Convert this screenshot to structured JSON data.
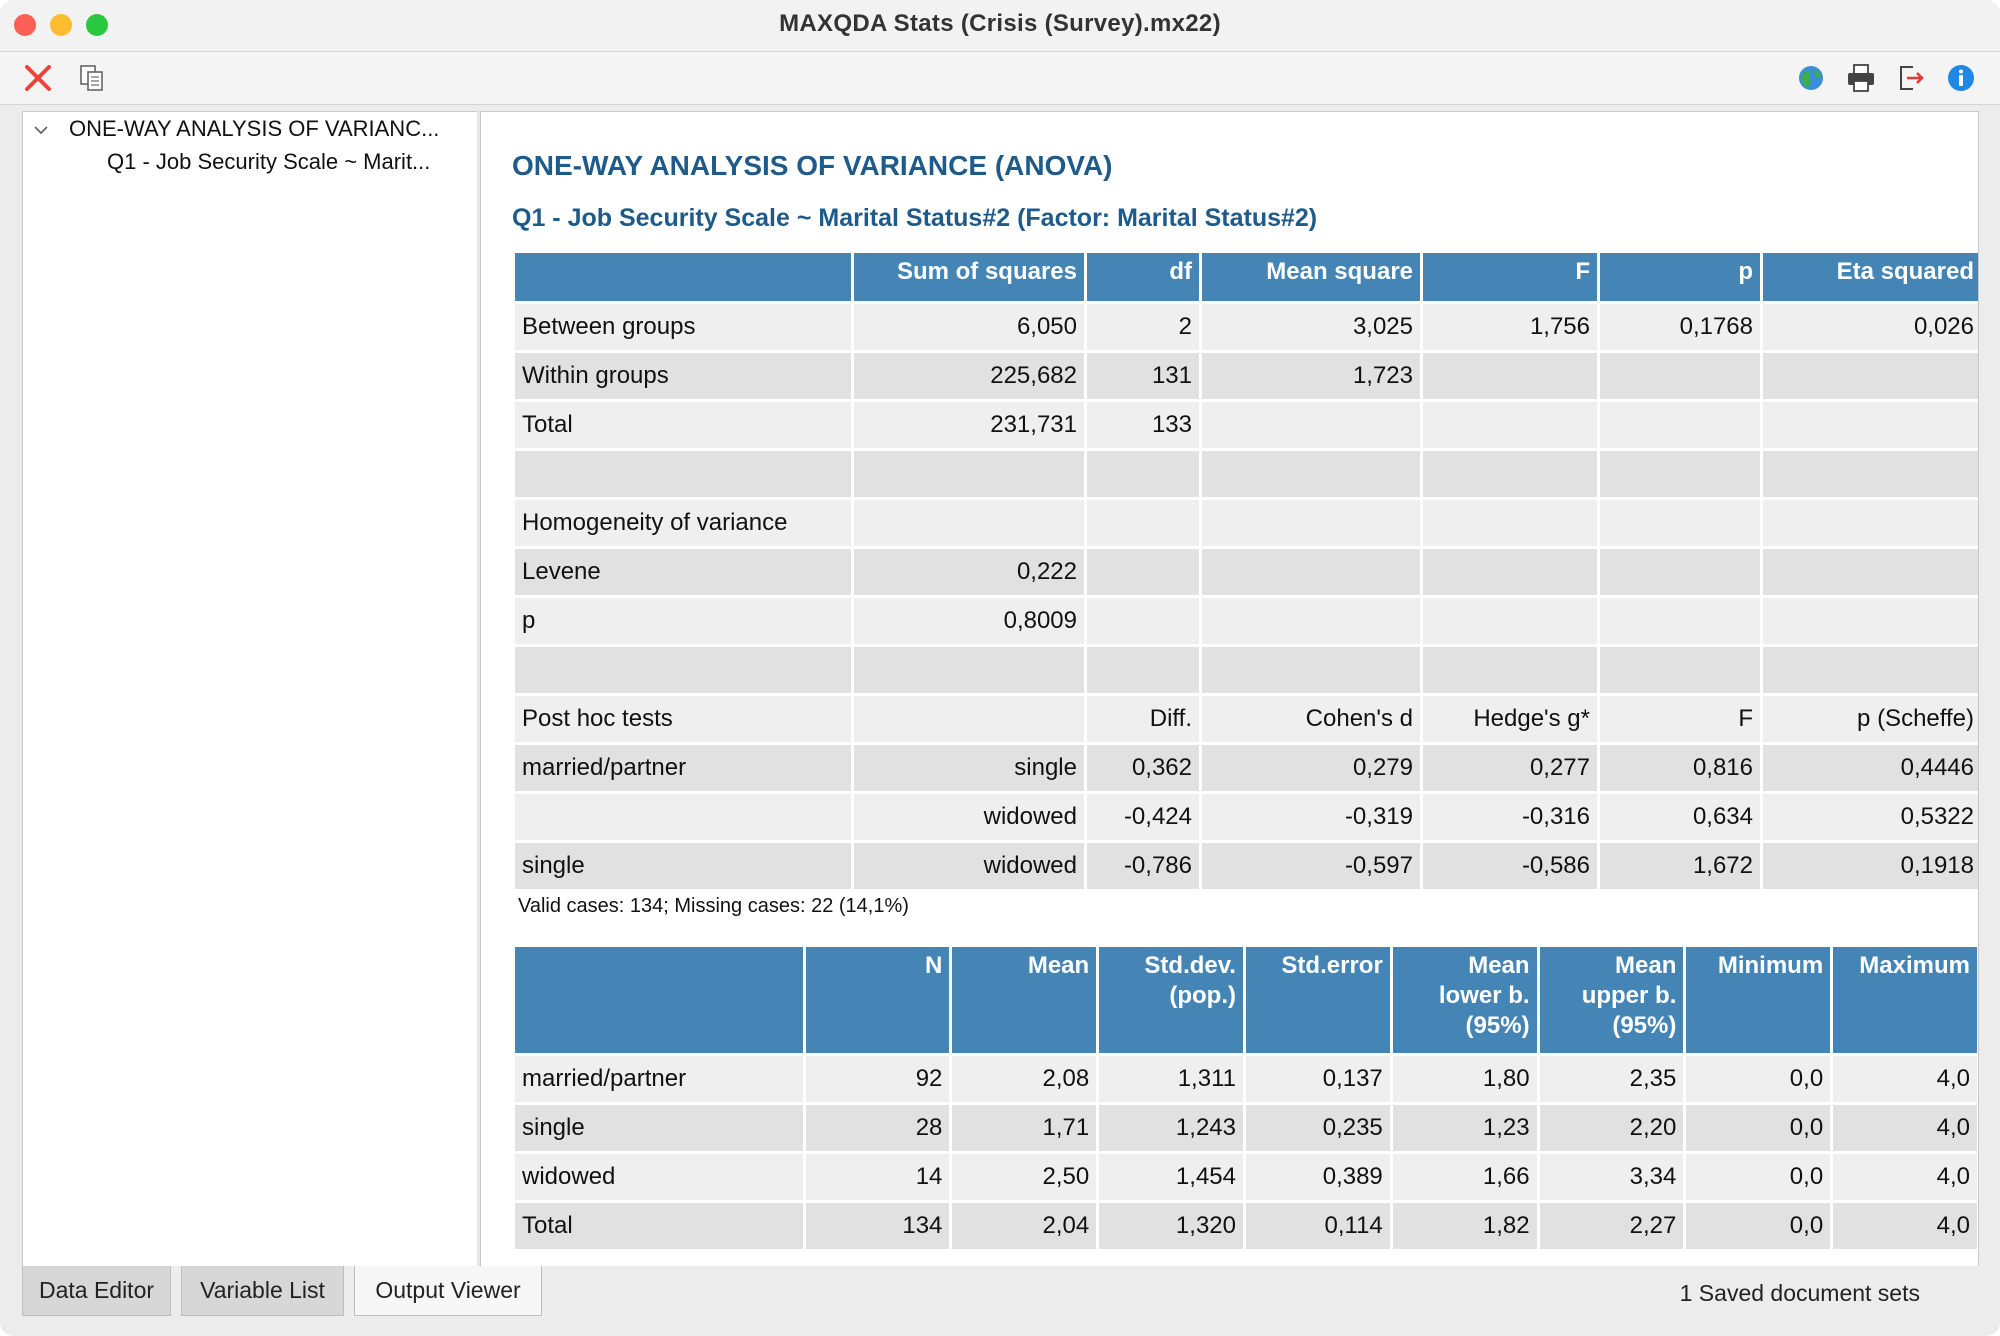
{
  "window": {
    "title": "MAXQDA Stats (Crisis (Survey).mx22)"
  },
  "toolbar": {
    "left_icons": [
      "close-icon",
      "copy-icon"
    ],
    "right_icons": [
      "globe-icon",
      "print-icon",
      "export-icon",
      "info-icon"
    ],
    "colors": {
      "close": "#e8453c",
      "info": "#1e88e5"
    }
  },
  "tree": {
    "root_label": "ONE-WAY ANALYSIS OF VARIANC...",
    "child_label": "Q1 - Job Security Scale ~ Marit..."
  },
  "report": {
    "title": "ONE-WAY ANALYSIS OF VARIANCE (ANOVA)",
    "subtitle": "Q1 - Job Security Scale ~ Marital Status#2 (Factor: Marital Status#2)",
    "title_color": "#1f5b8a",
    "header_color": "#4485b6",
    "anova": {
      "headers": [
        "",
        "Sum of squares",
        "df",
        "Mean square",
        "F",
        "p",
        "Eta squared"
      ],
      "rows": [
        [
          "Between groups",
          "6,050",
          "2",
          "3,025",
          "1,756",
          "0,1768",
          "0,026"
        ],
        [
          "Within groups",
          "225,682",
          "131",
          "1,723",
          "",
          "",
          ""
        ],
        [
          "Total",
          "231,731",
          "133",
          "",
          "",
          "",
          ""
        ],
        [
          "",
          "",
          "",
          "",
          "",
          "",
          ""
        ],
        [
          "Homogeneity of variance",
          "",
          "",
          "",
          "",
          "",
          ""
        ],
        [
          "Levene",
          "0,222",
          "",
          "",
          "",
          "",
          ""
        ],
        [
          "p",
          "0,8009",
          "",
          "",
          "",
          "",
          ""
        ],
        [
          "",
          "",
          "",
          "",
          "",
          "",
          ""
        ],
        [
          "Post hoc tests",
          "",
          "Diff.",
          "Cohen's d",
          "Hedge's g*",
          "F",
          "p (Scheffe)"
        ],
        [
          "married/partner",
          "single",
          "0,362",
          "0,279",
          "0,277",
          "0,816",
          "0,4446"
        ],
        [
          "",
          "widowed",
          "-0,424",
          "-0,319",
          "-0,316",
          "0,634",
          "0,5322"
        ],
        [
          "single",
          "widowed",
          "-0,786",
          "-0,597",
          "-0,586",
          "1,672",
          "0,1918"
        ]
      ]
    },
    "note": "Valid cases: 134; Missing cases: 22 (14,1%)",
    "descriptives": {
      "headers": [
        [
          "",
          ""
        ],
        [
          "N",
          ""
        ],
        [
          "Mean",
          ""
        ],
        [
          "Std.dev.",
          "(pop.)"
        ],
        [
          "Std.error",
          ""
        ],
        [
          "Mean",
          "lower b.",
          "(95%)"
        ],
        [
          "Mean",
          "upper b.",
          "(95%)"
        ],
        [
          "Minimum",
          ""
        ],
        [
          "Maximum",
          ""
        ]
      ],
      "rows": [
        [
          "married/partner",
          "92",
          "2,08",
          "1,311",
          "0,137",
          "1,80",
          "2,35",
          "0,0",
          "4,0"
        ],
        [
          "single",
          "28",
          "1,71",
          "1,243",
          "0,235",
          "1,23",
          "2,20",
          "0,0",
          "4,0"
        ],
        [
          "widowed",
          "14",
          "2,50",
          "1,454",
          "0,389",
          "1,66",
          "3,34",
          "0,0",
          "4,0"
        ],
        [
          "Total",
          "134",
          "2,04",
          "1,320",
          "0,114",
          "1,82",
          "2,27",
          "0,0",
          "4,0"
        ]
      ]
    }
  },
  "bottom_tabs": [
    {
      "label": "Data Editor",
      "active": false
    },
    {
      "label": "Variable List",
      "active": false
    },
    {
      "label": "Output Viewer",
      "active": true
    }
  ],
  "status": {
    "text": "1 Saved document sets"
  }
}
